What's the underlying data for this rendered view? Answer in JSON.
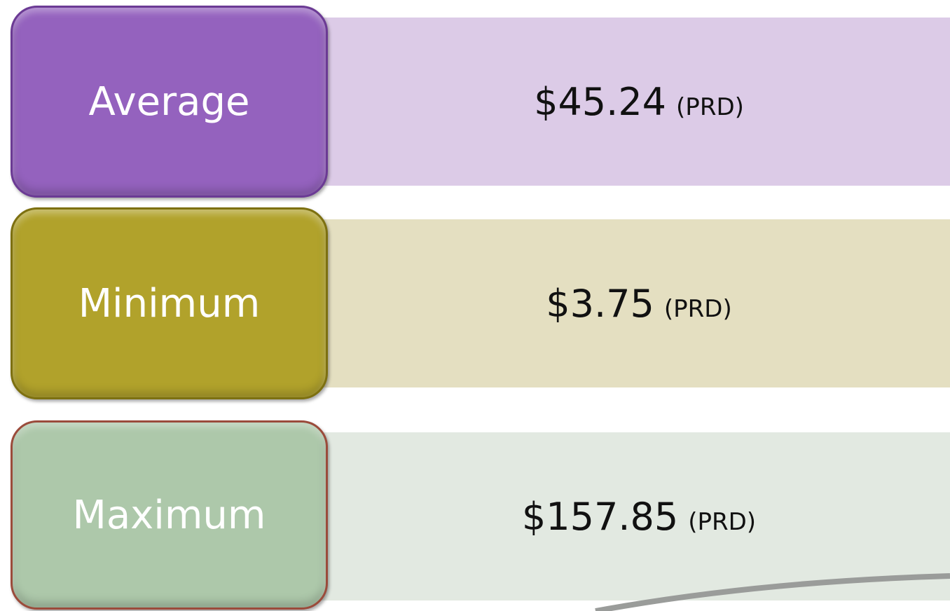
{
  "rows": [
    {
      "label": "Average",
      "value": "$45.24",
      "unit": "(PRD)"
    },
    {
      "label": "Minimum",
      "value": "$3.75",
      "unit": "(PRD)"
    },
    {
      "label": "Maximum",
      "value": "$157.85",
      "unit": "(PRD)"
    }
  ]
}
